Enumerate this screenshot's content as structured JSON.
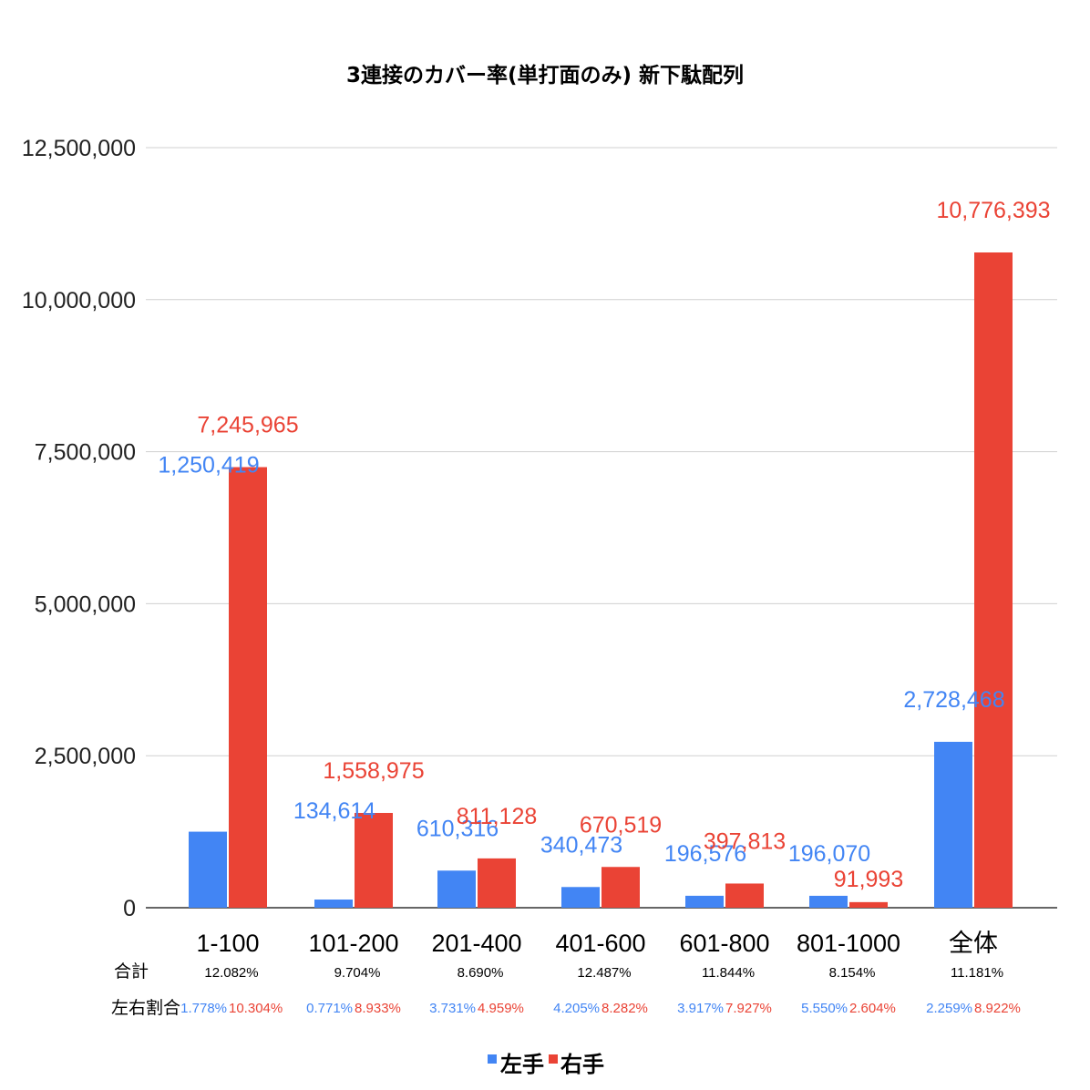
{
  "chart_data": {
    "type": "bar",
    "title": "3連接のカバー率(単打面のみ) 新下駄配列",
    "xlabel": "",
    "ylabel": "",
    "ylim": [
      0,
      12500000
    ],
    "yticks": [
      "0",
      "2,500,000",
      "5,000,000",
      "7,500,000",
      "10,000,000",
      "12,500,000"
    ],
    "grid": true,
    "legend_position": "bottom",
    "categories": [
      "1-100",
      "101-200",
      "201-400",
      "401-600",
      "601-800",
      "801-1000",
      "全体"
    ],
    "series": [
      {
        "name": "左手",
        "color": "#4285f4",
        "values": [
          1250419,
          134614,
          610316,
          340473,
          196576,
          196070,
          2728468
        ],
        "labels": [
          "1,250,419",
          "134,614",
          "610,316",
          "340,473",
          "196,576",
          "196,070",
          "2,728,468"
        ]
      },
      {
        "name": "右手",
        "color": "#ea4335",
        "values": [
          7245965,
          1558975,
          811128,
          670519,
          397813,
          91993,
          10776393
        ],
        "labels": [
          "7,245,965",
          "1,558,975",
          "811,128",
          "670,519",
          "397,813",
          "91,993",
          "10,776,393"
        ]
      }
    ],
    "table": {
      "total_label": "合計",
      "ratio_label": "左右割合",
      "totals": [
        "12.082%",
        "9.704%",
        "8.690%",
        "12.487%",
        "11.844%",
        "8.154%",
        "11.181%"
      ],
      "left_ratio": [
        "1.778%",
        "0.771%",
        "3.731%",
        "4.205%",
        "3.917%",
        "5.550%",
        "2.259%"
      ],
      "right_ratio": [
        "10.304%",
        "8.933%",
        "4.959%",
        "8.282%",
        "7.927%",
        "2.604%",
        "8.922%"
      ]
    }
  }
}
